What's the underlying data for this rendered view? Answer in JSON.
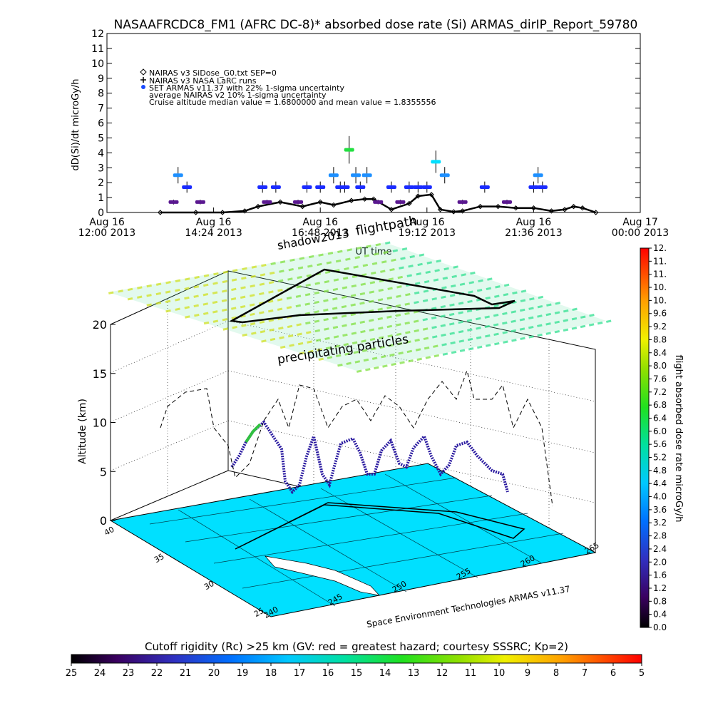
{
  "title": "NASAAFRCDC8_FM1 (AFRC DC-8)* absorbed dose rate (Si) ARMAS_dirIP_Report_59780",
  "chart_data": [
    {
      "type": "scatter",
      "ylabel": "dD(Si)/dt microGy/h",
      "ylim": [
        0,
        12
      ],
      "yticks": [
        "0",
        "1",
        "2",
        "3",
        "4",
        "5",
        "6",
        "7",
        "8",
        "9",
        "10",
        "11",
        "12"
      ],
      "xlabel": "UT time",
      "xticks": [
        {
          "day": "Aug 16",
          "time": "12:00 2013"
        },
        {
          "day": "Aug 16",
          "time": "14:24 2013"
        },
        {
          "day": "Aug 16",
          "time": "16:48 2013"
        },
        {
          "day": "Aug 16",
          "time": "19:12 2013"
        },
        {
          "day": "Aug 16",
          "time": "21:36 2013"
        },
        {
          "day": "Aug 17",
          "time": "00:00 2013"
        }
      ],
      "legend": [
        "NAIRAS v3 SiDose_G0.txt SEP=0",
        "NAIRAS v3 NASA LaRC runs",
        "SET ARMAS v11.37 with 22% 1-sigma uncertainty",
        "average NAIRAS v2 10% 1-sigma uncertainty",
        "Cruise altitude median value = 1.6800000 and mean value = 1.8355556"
      ],
      "series": [
        {
          "name": "NAIRAS v3 SiDose_G0.txt SEP=0",
          "x": [
            13.2,
            14.0,
            14.6,
            15.1,
            15.4,
            15.9,
            16.4,
            16.8,
            17.1,
            17.5,
            17.8,
            18.0,
            18.4,
            18.8,
            19.0,
            19.3,
            19.5,
            19.8,
            20.0,
            20.4,
            20.8,
            21.2,
            21.6,
            22.0,
            22.3,
            22.5,
            22.7,
            23.0
          ],
          "y": [
            0,
            0,
            0,
            0.1,
            0.4,
            0.7,
            0.4,
            0.7,
            0.5,
            0.8,
            0.9,
            0.9,
            0.2,
            0.6,
            1.1,
            1.2,
            0.2,
            0.05,
            0.1,
            0.4,
            0.4,
            0.3,
            0.3,
            0.1,
            0.2,
            0.4,
            0.3,
            0.0
          ]
        },
        {
          "name": "SET ARMAS v11.37 with 22% 1-sigma uncertainty",
          "x": [
            13.5,
            13.6,
            13.8,
            14.1,
            15.5,
            15.6,
            15.8,
            16.3,
            16.5,
            16.8,
            17.1,
            17.25,
            17.35,
            17.45,
            17.6,
            17.7,
            17.85,
            18.1,
            18.4,
            18.6,
            18.8,
            19.0,
            19.2,
            19.4,
            19.6,
            20.0,
            20.5,
            21.0,
            21.6,
            21.7,
            21.8
          ],
          "y": [
            0.7,
            2.5,
            1.7,
            0.7,
            1.7,
            0.7,
            1.7,
            0.7,
            1.7,
            1.7,
            2.5,
            1.7,
            1.7,
            4.2,
            2.5,
            1.7,
            2.5,
            0.7,
            1.7,
            0.7,
            1.7,
            1.7,
            1.7,
            3.4,
            2.5,
            0.7,
            1.7,
            0.7,
            1.7,
            2.5,
            1.7
          ]
        }
      ]
    },
    {
      "type": "scatter",
      "ylabel": "Altitude (km)",
      "zticks": [
        "0",
        "5",
        "10",
        "15",
        "20"
      ],
      "lat_ticks": [
        "40",
        "35",
        "30",
        "25"
      ],
      "lon_ticks": [
        "240",
        "245",
        "250",
        "255",
        "260",
        "265"
      ],
      "annotations": [
        "flightpath",
        "shadow2013",
        "precipitating particles"
      ],
      "credit": "Space Environment Technologies ARMAS v11.37"
    },
    {
      "type": "heatmap",
      "label": "flight absorbed dose rate microGy/h",
      "ticks": [
        "12.",
        "11.",
        "11.",
        "10.",
        "10.",
        "9.6",
        "9.2",
        "8.8",
        "8.4",
        "8.0",
        "7.6",
        "7.2",
        "6.8",
        "6.4",
        "6.0",
        "5.6",
        "5.2",
        "4.8",
        "4.4",
        "4.0",
        "3.6",
        "3.2",
        "2.8",
        "2.4",
        "2.0",
        "1.6",
        "1.2",
        "0.8",
        "0.4",
        "0.0"
      ]
    },
    {
      "type": "heatmap",
      "label": "Cutoff rigidity (Rc) >25 km (GV: red = greatest hazard; courtesy SSSRC; Kp=2)",
      "ticks": [
        "25",
        "24",
        "23",
        "22",
        "21",
        "20",
        "19",
        "18",
        "17",
        "16",
        "15",
        "14",
        "13",
        "12",
        "11",
        "10",
        "9",
        "8",
        "7",
        "6",
        "5"
      ]
    }
  ]
}
